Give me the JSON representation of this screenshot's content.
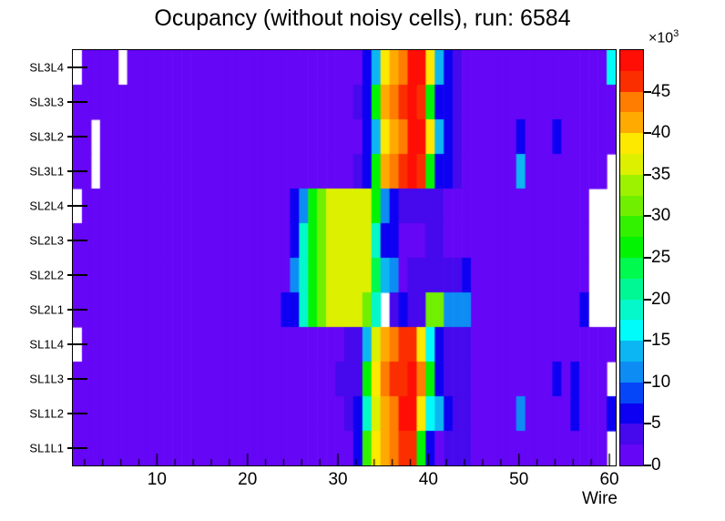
{
  "chart_data": {
    "type": "heatmap",
    "title": "Ocupancy (without noisy cells), run: 6584",
    "xlabel": "Wire",
    "x_range": [
      1,
      60
    ],
    "x_major_ticks": [
      10,
      20,
      30,
      40,
      50,
      60
    ],
    "x_minor_tick_step": 2,
    "z_range_thousands": [
      0,
      50
    ],
    "z_exponent": {
      "base": "×10",
      "exp": "3"
    },
    "colorbar_ticks": [
      0,
      5,
      10,
      15,
      20,
      25,
      30,
      35,
      40,
      45
    ],
    "palette": [
      "#6506f6",
      "#4608ec",
      "#0d00f2",
      "#0546f8",
      "#0d8df4",
      "#0cb6f2",
      "#00fcfa",
      "#04f8c9",
      "#00f894",
      "#00fa4d",
      "#02f403",
      "#33f200",
      "#70f000",
      "#9df200",
      "#ddf000",
      "#fde800",
      "#ffaa00",
      "#ff7d00",
      "#fb2e00",
      "#ff0e05"
    ],
    "band_width_thousands": 2.5,
    "null_means": "masked noisy cell (white)",
    "values_unit": "thousands of counts",
    "rows": [
      {
        "label": "SL3L4",
        "values": [
          null,
          1,
          1,
          1,
          1,
          null,
          1,
          1,
          1,
          1,
          1,
          1,
          1,
          1,
          1,
          1,
          1,
          1,
          1,
          1,
          1,
          1,
          1,
          1,
          1,
          1,
          1,
          1,
          1,
          1,
          1,
          1,
          6,
          14,
          39,
          41,
          44,
          49,
          49,
          39,
          14,
          6,
          4,
          1,
          1,
          1,
          1,
          1,
          1,
          1,
          1,
          1,
          1,
          1,
          1,
          1,
          1,
          1,
          1,
          16
        ]
      },
      {
        "label": "SL3L3",
        "values": [
          1,
          1,
          1,
          1,
          1,
          1,
          1,
          1,
          1,
          1,
          1,
          1,
          1,
          1,
          1,
          1,
          1,
          1,
          1,
          1,
          1,
          1,
          1,
          1,
          1,
          1,
          1,
          1,
          1,
          1,
          1,
          4,
          6,
          26,
          41,
          44,
          46,
          49,
          46,
          26,
          6,
          6,
          4,
          1,
          1,
          1,
          1,
          1,
          1,
          1,
          1,
          1,
          1,
          1,
          1,
          1,
          1,
          1,
          1,
          1
        ]
      },
      {
        "label": "SL3L2",
        "values": [
          1,
          1,
          null,
          1,
          1,
          1,
          1,
          1,
          1,
          1,
          1,
          1,
          1,
          1,
          1,
          1,
          1,
          1,
          1,
          1,
          1,
          1,
          1,
          1,
          1,
          1,
          1,
          1,
          1,
          1,
          1,
          1,
          6,
          14,
          39,
          41,
          44,
          49,
          49,
          39,
          14,
          6,
          4,
          1,
          1,
          1,
          1,
          1,
          1,
          6,
          1,
          1,
          1,
          6,
          1,
          1,
          1,
          1,
          1,
          1
        ]
      },
      {
        "label": "SL3L1",
        "values": [
          1,
          1,
          null,
          1,
          1,
          1,
          1,
          1,
          1,
          1,
          1,
          1,
          1,
          1,
          1,
          1,
          1,
          1,
          1,
          1,
          1,
          1,
          1,
          1,
          1,
          1,
          1,
          1,
          1,
          1,
          1,
          4,
          6,
          26,
          41,
          44,
          46,
          49,
          46,
          26,
          6,
          6,
          4,
          1,
          1,
          1,
          1,
          1,
          1,
          14,
          1,
          1,
          1,
          1,
          1,
          1,
          1,
          1,
          1,
          null
        ]
      },
      {
        "label": "SL2L4",
        "values": [
          null,
          1,
          1,
          1,
          1,
          1,
          1,
          1,
          1,
          1,
          1,
          1,
          1,
          1,
          1,
          1,
          1,
          1,
          1,
          1,
          1,
          1,
          1,
          1,
          6,
          11,
          26,
          31,
          36,
          36,
          36,
          36,
          36,
          26,
          11,
          6,
          4,
          4,
          4,
          4,
          4,
          1,
          1,
          1,
          1,
          1,
          1,
          1,
          1,
          1,
          1,
          1,
          1,
          1,
          1,
          1,
          1,
          null,
          null,
          null
        ]
      },
      {
        "label": "SL2L3",
        "values": [
          1,
          1,
          1,
          1,
          1,
          1,
          1,
          1,
          1,
          1,
          1,
          1,
          1,
          1,
          1,
          1,
          1,
          1,
          1,
          1,
          1,
          1,
          1,
          1,
          6,
          19,
          26,
          31,
          36,
          36,
          36,
          36,
          36,
          19,
          6,
          6,
          1,
          1,
          1,
          4,
          4,
          1,
          1,
          1,
          1,
          1,
          1,
          1,
          1,
          1,
          1,
          1,
          1,
          1,
          1,
          1,
          1,
          null,
          null,
          null
        ]
      },
      {
        "label": "SL2L2",
        "values": [
          1,
          1,
          1,
          1,
          1,
          1,
          1,
          1,
          1,
          1,
          1,
          1,
          1,
          1,
          1,
          1,
          1,
          1,
          1,
          1,
          1,
          1,
          1,
          1,
          11,
          19,
          26,
          31,
          36,
          36,
          36,
          36,
          36,
          24,
          14,
          11,
          1,
          4,
          4,
          4,
          4,
          4,
          4,
          6,
          1,
          1,
          1,
          1,
          1,
          1,
          1,
          1,
          1,
          1,
          1,
          1,
          1,
          null,
          null,
          null
        ]
      },
      {
        "label": "SL2L1",
        "values": [
          1,
          1,
          1,
          1,
          1,
          1,
          1,
          1,
          1,
          1,
          1,
          1,
          1,
          1,
          1,
          1,
          1,
          1,
          1,
          1,
          1,
          1,
          1,
          6,
          6,
          19,
          26,
          31,
          36,
          36,
          36,
          36,
          31,
          19,
          null,
          4,
          6,
          4,
          4,
          31,
          31,
          11,
          11,
          11,
          1,
          1,
          1,
          1,
          1,
          1,
          1,
          1,
          1,
          1,
          1,
          1,
          6,
          null,
          null,
          null
        ]
      },
      {
        "label": "SL1L4",
        "values": [
          null,
          1,
          1,
          1,
          1,
          1,
          1,
          1,
          1,
          1,
          1,
          1,
          1,
          1,
          1,
          1,
          1,
          1,
          1,
          1,
          1,
          1,
          1,
          1,
          1,
          1,
          1,
          1,
          1,
          1,
          4,
          4,
          14,
          36,
          41,
          44,
          46,
          46,
          39,
          16,
          6,
          4,
          4,
          4,
          1,
          1,
          1,
          1,
          1,
          1,
          1,
          1,
          1,
          1,
          1,
          1,
          1,
          1,
          1,
          1
        ]
      },
      {
        "label": "SL1L3",
        "values": [
          1,
          1,
          1,
          1,
          1,
          1,
          1,
          1,
          1,
          1,
          1,
          1,
          1,
          1,
          1,
          1,
          1,
          1,
          1,
          1,
          1,
          1,
          1,
          1,
          1,
          1,
          1,
          1,
          1,
          4,
          4,
          4,
          26,
          39,
          44,
          46,
          46,
          49,
          44,
          26,
          6,
          4,
          4,
          4,
          1,
          1,
          1,
          1,
          1,
          1,
          1,
          1,
          1,
          6,
          1,
          6,
          1,
          1,
          1,
          null
        ]
      },
      {
        "label": "SL1L2",
        "values": [
          1,
          1,
          1,
          1,
          1,
          1,
          1,
          1,
          1,
          1,
          1,
          1,
          1,
          1,
          1,
          1,
          1,
          1,
          1,
          1,
          1,
          1,
          1,
          1,
          1,
          1,
          1,
          1,
          1,
          1,
          4,
          6,
          19,
          36,
          41,
          44,
          49,
          49,
          39,
          16,
          14,
          6,
          4,
          4,
          1,
          1,
          1,
          1,
          1,
          11,
          1,
          1,
          1,
          1,
          1,
          6,
          1,
          1,
          1,
          6
        ]
      },
      {
        "label": "SL1L1",
        "values": [
          1,
          1,
          1,
          1,
          1,
          1,
          1,
          1,
          1,
          1,
          1,
          1,
          1,
          1,
          1,
          1,
          1,
          1,
          1,
          1,
          1,
          1,
          1,
          1,
          1,
          1,
          1,
          1,
          1,
          1,
          1,
          6,
          29,
          39,
          41,
          44,
          46,
          46,
          26,
          6,
          1,
          4,
          4,
          4,
          1,
          1,
          1,
          1,
          1,
          1,
          1,
          1,
          1,
          1,
          1,
          1,
          1,
          1,
          1,
          null
        ]
      }
    ]
  }
}
